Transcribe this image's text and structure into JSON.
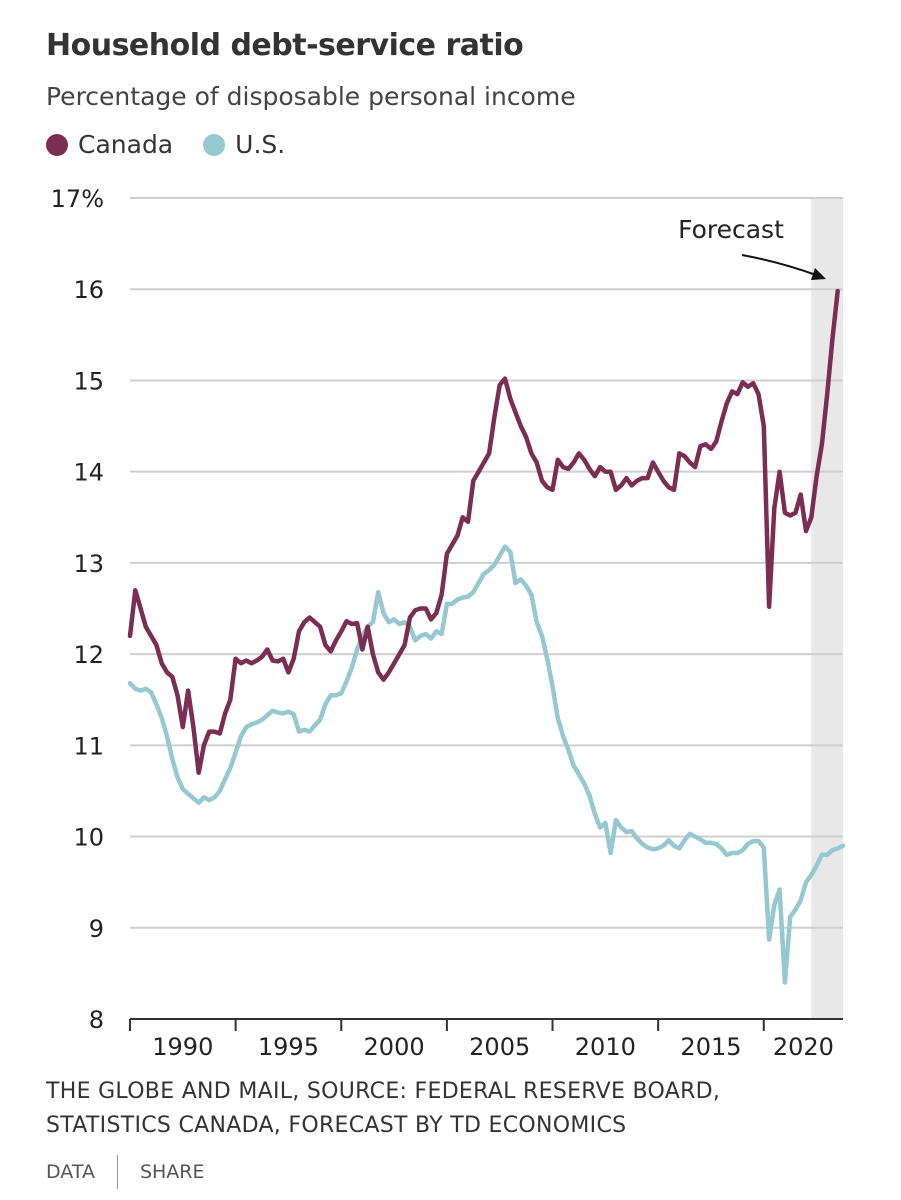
{
  "header": {
    "title": "Household debt-service ratio",
    "subtitle": "Percentage of disposable personal income"
  },
  "legend": [
    {
      "label": "Canada",
      "color": "#7b2d52"
    },
    {
      "label": "U.S.",
      "color": "#96c8d2"
    }
  ],
  "footer": {
    "source_line1": "THE GLOBE AND MAIL, SOURCE: FEDERAL RESERVE BOARD,",
    "source_line2": "STATISTICS CANADA, FORECAST BY TD ECONOMICS"
  },
  "links": {
    "data_label": "DATA",
    "share_label": "SHARE"
  },
  "chart_data": {
    "type": "line",
    "title": "Household debt-service ratio",
    "subtitle": "Percentage of disposable personal income",
    "xlabel": "",
    "ylabel": "",
    "ylim": [
      8,
      17
    ],
    "xlim": [
      1988,
      2021.75
    ],
    "y_ticks": [
      "8",
      "9",
      "10",
      "11",
      "12",
      "13",
      "14",
      "15",
      "16",
      "17%"
    ],
    "x_ticks": [
      "1990",
      "1995",
      "2000",
      "2005",
      "2010",
      "2015",
      "2020"
    ],
    "grid": true,
    "legend_position": "top-left",
    "forecast_band": {
      "from": 2020.25,
      "to": 2021.75,
      "label": "Forecast"
    },
    "series": [
      {
        "name": "Canada",
        "color": "#7b2d52",
        "points": [
          [
            1988.0,
            12.2
          ],
          [
            1988.25,
            12.7
          ],
          [
            1988.5,
            12.5
          ],
          [
            1988.75,
            12.3
          ],
          [
            1989.0,
            12.2
          ],
          [
            1989.25,
            12.1
          ],
          [
            1989.5,
            11.9
          ],
          [
            1989.75,
            11.8
          ],
          [
            1990.0,
            11.75
          ],
          [
            1990.25,
            11.55
          ],
          [
            1990.5,
            11.2
          ],
          [
            1990.75,
            11.6
          ],
          [
            1991.0,
            11.2
          ],
          [
            1991.25,
            10.7
          ],
          [
            1991.5,
            11.0
          ],
          [
            1991.75,
            11.15
          ],
          [
            1992.0,
            11.15
          ],
          [
            1992.25,
            11.13
          ],
          [
            1992.5,
            11.35
          ],
          [
            1992.75,
            11.5
          ],
          [
            1993.0,
            11.95
          ],
          [
            1993.25,
            11.9
          ],
          [
            1993.5,
            11.93
          ],
          [
            1993.75,
            11.9
          ],
          [
            1994.0,
            11.93
          ],
          [
            1994.25,
            11.97
          ],
          [
            1994.5,
            12.05
          ],
          [
            1994.75,
            11.93
          ],
          [
            1995.0,
            11.92
          ],
          [
            1995.25,
            11.95
          ],
          [
            1995.5,
            11.8
          ],
          [
            1995.75,
            11.95
          ],
          [
            1996.0,
            12.25
          ],
          [
            1996.25,
            12.35
          ],
          [
            1996.5,
            12.4
          ],
          [
            1996.75,
            12.35
          ],
          [
            1997.0,
            12.3
          ],
          [
            1997.25,
            12.1
          ],
          [
            1997.5,
            12.03
          ],
          [
            1997.75,
            12.15
          ],
          [
            1998.0,
            12.25
          ],
          [
            1998.25,
            12.36
          ],
          [
            1998.5,
            12.33
          ],
          [
            1998.75,
            12.34
          ],
          [
            1999.0,
            12.05
          ],
          [
            1999.25,
            12.3
          ],
          [
            1999.5,
            12.0
          ],
          [
            1999.75,
            11.8
          ],
          [
            2000.0,
            11.72
          ],
          [
            2000.25,
            11.8
          ],
          [
            2000.5,
            11.9
          ],
          [
            2000.75,
            12.0
          ],
          [
            2001.0,
            12.1
          ],
          [
            2001.25,
            12.4
          ],
          [
            2001.5,
            12.48
          ],
          [
            2001.75,
            12.5
          ],
          [
            2002.0,
            12.5
          ],
          [
            2002.25,
            12.38
          ],
          [
            2002.5,
            12.45
          ],
          [
            2002.75,
            12.65
          ],
          [
            2003.0,
            13.1
          ],
          [
            2003.25,
            13.2
          ],
          [
            2003.5,
            13.3
          ],
          [
            2003.75,
            13.5
          ],
          [
            2004.0,
            13.45
          ],
          [
            2004.25,
            13.9
          ],
          [
            2004.5,
            14.0
          ],
          [
            2004.75,
            14.1
          ],
          [
            2005.0,
            14.2
          ],
          [
            2005.25,
            14.6
          ],
          [
            2005.5,
            14.95
          ],
          [
            2005.75,
            15.02
          ],
          [
            2006.0,
            14.8
          ],
          [
            2006.25,
            14.65
          ],
          [
            2006.5,
            14.5
          ],
          [
            2006.75,
            14.38
          ],
          [
            2007.0,
            14.2
          ],
          [
            2007.25,
            14.1
          ],
          [
            2007.5,
            13.9
          ],
          [
            2007.75,
            13.83
          ],
          [
            2008.0,
            13.8
          ],
          [
            2008.25,
            14.13
          ],
          [
            2008.5,
            14.05
          ],
          [
            2008.75,
            14.03
          ],
          [
            2009.0,
            14.1
          ],
          [
            2009.25,
            14.2
          ],
          [
            2009.5,
            14.13
          ],
          [
            2009.75,
            14.03
          ],
          [
            2010.0,
            13.95
          ],
          [
            2010.25,
            14.05
          ],
          [
            2010.5,
            14.0
          ],
          [
            2010.75,
            14.0
          ],
          [
            2011.0,
            13.8
          ],
          [
            2011.25,
            13.85
          ],
          [
            2011.5,
            13.93
          ],
          [
            2011.75,
            13.85
          ],
          [
            2012.0,
            13.9
          ],
          [
            2012.25,
            13.93
          ],
          [
            2012.5,
            13.93
          ],
          [
            2012.75,
            14.1
          ],
          [
            2013.0,
            14.0
          ],
          [
            2013.25,
            13.9
          ],
          [
            2013.5,
            13.83
          ],
          [
            2013.75,
            13.8
          ],
          [
            2014.0,
            14.2
          ],
          [
            2014.25,
            14.17
          ],
          [
            2014.5,
            14.1
          ],
          [
            2014.75,
            14.05
          ],
          [
            2015.0,
            14.28
          ],
          [
            2015.25,
            14.3
          ],
          [
            2015.5,
            14.25
          ],
          [
            2015.75,
            14.33
          ],
          [
            2016.0,
            14.55
          ],
          [
            2016.25,
            14.75
          ],
          [
            2016.5,
            14.88
          ],
          [
            2016.75,
            14.85
          ],
          [
            2017.0,
            14.98
          ],
          [
            2017.25,
            14.93
          ],
          [
            2017.5,
            14.97
          ],
          [
            2017.75,
            14.85
          ],
          [
            2018.0,
            14.5
          ],
          [
            2018.25,
            12.52
          ],
          [
            2018.5,
            13.6
          ],
          [
            2018.75,
            14.0
          ],
          [
            2019.0,
            13.55
          ],
          [
            2019.25,
            13.52
          ],
          [
            2019.5,
            13.55
          ],
          [
            2019.75,
            13.75
          ],
          [
            2020.0,
            13.35
          ],
          [
            2020.25,
            13.5
          ],
          [
            2020.5,
            13.95
          ],
          [
            2020.75,
            14.3
          ],
          [
            2021.0,
            14.85
          ],
          [
            2021.25,
            15.45
          ],
          [
            2021.5,
            15.98
          ]
        ]
      },
      {
        "name": "U.S.",
        "color": "#96c8d2",
        "points": [
          [
            1988.0,
            11.68
          ],
          [
            1988.25,
            11.62
          ],
          [
            1988.5,
            11.6
          ],
          [
            1988.75,
            11.62
          ],
          [
            1989.0,
            11.58
          ],
          [
            1989.25,
            11.45
          ],
          [
            1989.5,
            11.3
          ],
          [
            1989.75,
            11.1
          ],
          [
            1990.0,
            10.85
          ],
          [
            1990.25,
            10.65
          ],
          [
            1990.5,
            10.52
          ],
          [
            1990.75,
            10.47
          ],
          [
            1991.0,
            10.42
          ],
          [
            1991.25,
            10.37
          ],
          [
            1991.5,
            10.43
          ],
          [
            1991.75,
            10.4
          ],
          [
            1992.0,
            10.43
          ],
          [
            1992.25,
            10.5
          ],
          [
            1992.5,
            10.63
          ],
          [
            1992.75,
            10.75
          ],
          [
            1993.0,
            10.92
          ],
          [
            1993.25,
            11.1
          ],
          [
            1993.5,
            11.2
          ],
          [
            1993.75,
            11.23
          ],
          [
            1994.0,
            11.25
          ],
          [
            1994.25,
            11.28
          ],
          [
            1994.5,
            11.33
          ],
          [
            1994.75,
            11.38
          ],
          [
            1995.0,
            11.36
          ],
          [
            1995.25,
            11.35
          ],
          [
            1995.5,
            11.37
          ],
          [
            1995.75,
            11.34
          ],
          [
            1996.0,
            11.15
          ],
          [
            1996.25,
            11.17
          ],
          [
            1996.5,
            11.15
          ],
          [
            1996.75,
            11.22
          ],
          [
            1997.0,
            11.28
          ],
          [
            1997.25,
            11.45
          ],
          [
            1997.5,
            11.55
          ],
          [
            1997.75,
            11.55
          ],
          [
            1998.0,
            11.57
          ],
          [
            1998.25,
            11.7
          ],
          [
            1998.5,
            11.85
          ],
          [
            1998.75,
            12.05
          ],
          [
            1999.0,
            12.2
          ],
          [
            1999.25,
            12.3
          ],
          [
            1999.5,
            12.35
          ],
          [
            1999.75,
            12.68
          ],
          [
            2000.0,
            12.45
          ],
          [
            2000.25,
            12.35
          ],
          [
            2000.5,
            12.38
          ],
          [
            2000.75,
            12.33
          ],
          [
            2001.0,
            12.35
          ],
          [
            2001.25,
            12.3
          ],
          [
            2001.5,
            12.15
          ],
          [
            2001.75,
            12.2
          ],
          [
            2002.0,
            12.22
          ],
          [
            2002.25,
            12.17
          ],
          [
            2002.5,
            12.25
          ],
          [
            2002.75,
            12.22
          ],
          [
            2003.0,
            12.55
          ],
          [
            2003.25,
            12.55
          ],
          [
            2003.5,
            12.6
          ],
          [
            2003.75,
            12.62
          ],
          [
            2004.0,
            12.63
          ],
          [
            2004.25,
            12.68
          ],
          [
            2004.5,
            12.78
          ],
          [
            2004.75,
            12.88
          ],
          [
            2005.0,
            12.92
          ],
          [
            2005.25,
            12.98
          ],
          [
            2005.5,
            13.08
          ],
          [
            2005.75,
            13.18
          ],
          [
            2006.0,
            13.12
          ],
          [
            2006.25,
            12.78
          ],
          [
            2006.5,
            12.82
          ],
          [
            2006.75,
            12.75
          ],
          [
            2007.0,
            12.65
          ],
          [
            2007.25,
            12.35
          ],
          [
            2007.5,
            12.2
          ],
          [
            2007.75,
            11.95
          ],
          [
            2008.0,
            11.65
          ],
          [
            2008.25,
            11.3
          ],
          [
            2008.5,
            11.1
          ],
          [
            2008.75,
            10.95
          ],
          [
            2009.0,
            10.78
          ],
          [
            2009.25,
            10.68
          ],
          [
            2009.5,
            10.58
          ],
          [
            2009.75,
            10.45
          ],
          [
            2010.0,
            10.25
          ],
          [
            2010.25,
            10.1
          ],
          [
            2010.5,
            10.15
          ],
          [
            2010.75,
            9.82
          ],
          [
            2011.0,
            10.18
          ],
          [
            2011.25,
            10.1
          ],
          [
            2011.5,
            10.05
          ],
          [
            2011.75,
            10.06
          ],
          [
            2012.0,
            9.98
          ],
          [
            2012.25,
            9.92
          ],
          [
            2012.5,
            9.88
          ],
          [
            2012.75,
            9.86
          ],
          [
            2013.0,
            9.87
          ],
          [
            2013.25,
            9.9
          ],
          [
            2013.5,
            9.96
          ],
          [
            2013.75,
            9.9
          ],
          [
            2014.0,
            9.87
          ],
          [
            2014.25,
            9.96
          ],
          [
            2014.5,
            10.03
          ],
          [
            2014.75,
            10.0
          ],
          [
            2015.0,
            9.97
          ],
          [
            2015.25,
            9.93
          ],
          [
            2015.5,
            9.93
          ],
          [
            2015.75,
            9.92
          ],
          [
            2016.0,
            9.87
          ],
          [
            2016.25,
            9.8
          ],
          [
            2016.5,
            9.82
          ],
          [
            2016.75,
            9.82
          ],
          [
            2017.0,
            9.85
          ],
          [
            2017.25,
            9.92
          ],
          [
            2017.5,
            9.95
          ],
          [
            2017.75,
            9.95
          ],
          [
            2018.0,
            9.88
          ],
          [
            2018.25,
            8.87
          ],
          [
            2018.5,
            9.25
          ],
          [
            2018.75,
            9.42
          ],
          [
            2019.0,
            8.4
          ],
          [
            2019.25,
            9.12
          ],
          [
            2019.5,
            9.2
          ],
          [
            2019.75,
            9.3
          ],
          [
            2020.0,
            9.5
          ],
          [
            2020.25,
            9.58
          ],
          [
            2020.5,
            9.68
          ],
          [
            2020.75,
            9.8
          ],
          [
            2021.0,
            9.8
          ],
          [
            2021.25,
            9.85
          ],
          [
            2021.5,
            9.87
          ],
          [
            2021.75,
            9.9
          ]
        ]
      }
    ]
  }
}
